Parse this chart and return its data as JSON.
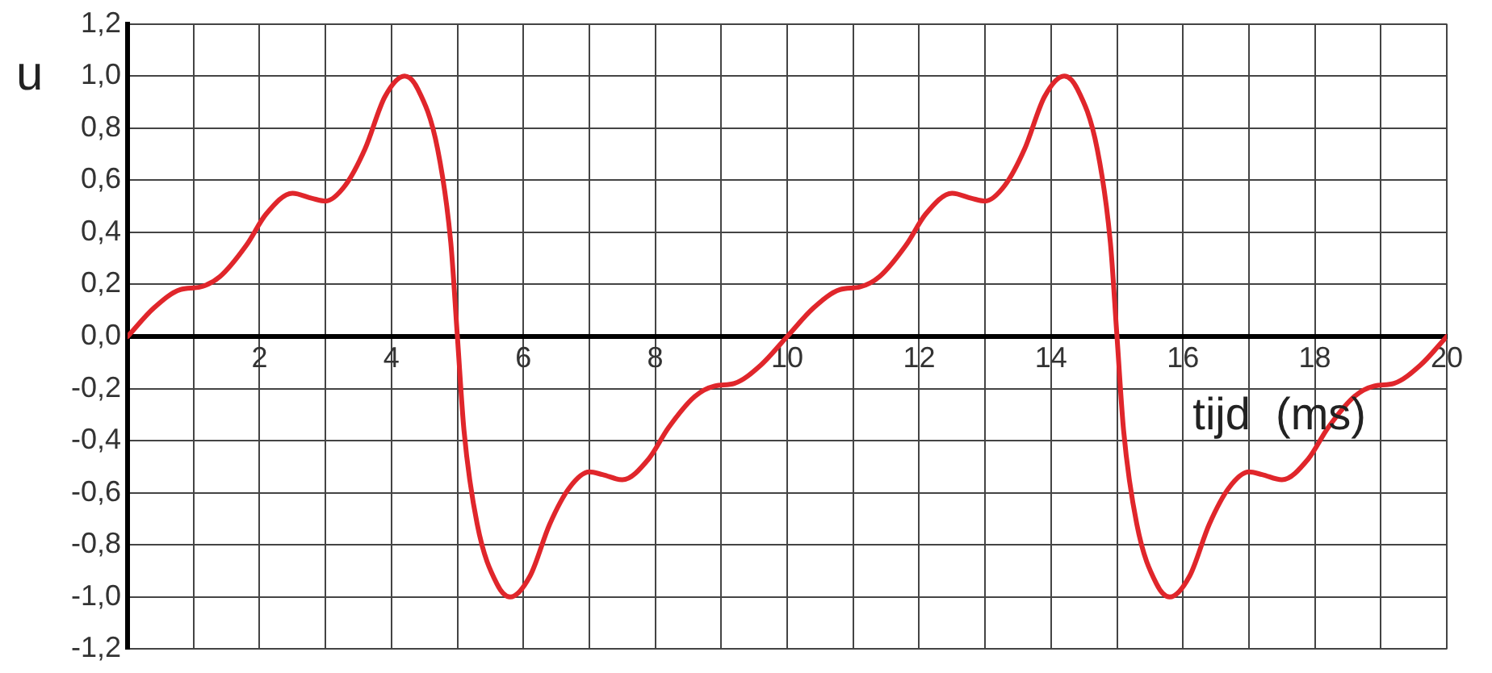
{
  "chart_data": {
    "type": "line",
    "xlabel": "tijd  (ms)",
    "ylabel": "u",
    "color": "#e0262b",
    "grid": true,
    "marker": "none",
    "line_style": "solid",
    "xlim": [
      0,
      20
    ],
    "ylim": [
      -1.2,
      1.2
    ],
    "xticks": [
      {
        "value": 0,
        "label": null
      },
      {
        "value": 1,
        "label": null
      },
      2,
      {
        "value": 3,
        "label": null
      },
      4,
      {
        "value": 5,
        "label": null
      },
      6,
      {
        "value": 7,
        "label": null
      },
      8,
      {
        "value": 9,
        "label": null
      },
      10,
      {
        "value": 11,
        "label": null
      },
      12,
      {
        "value": 13,
        "label": null
      },
      14,
      {
        "value": 15,
        "label": null
      },
      16,
      {
        "value": 17,
        "label": null
      },
      18,
      {
        "value": 19,
        "label": null
      },
      20
    ],
    "yticks": [
      {
        "value": -1.2,
        "label": "-1,2"
      },
      {
        "value": -1,
        "label": "-1,0"
      },
      {
        "value": -0.8,
        "label": "-0,8"
      },
      {
        "value": -0.6,
        "label": "-0,6"
      },
      {
        "value": -0.4,
        "label": "-0,4"
      },
      {
        "value": -0.2,
        "label": "-0,2"
      },
      {
        "value": 0,
        "label": "0,0"
      },
      {
        "value": 0.2,
        "label": "0,2"
      },
      {
        "value": 0.4,
        "label": "0,4"
      },
      {
        "value": 0.6,
        "label": "0,6"
      },
      {
        "value": 0.8,
        "label": "0,8"
      },
      {
        "value": 1,
        "label": "1,0"
      },
      {
        "value": 1.2,
        "label": "1,2"
      }
    ],
    "x": [
      0,
      0.4,
      0.8,
      1.1,
      1.4,
      1.8,
      2.1,
      2.5,
      2.8,
      3.0,
      3.3,
      3.6,
      3.9,
      4.2,
      4.4,
      4.7,
      4.9,
      5.0,
      5.1,
      5.3,
      5.6,
      5.8,
      6.1,
      6.4,
      6.7,
      7.0,
      7.2,
      7.5,
      7.9,
      8.2,
      8.6,
      8.9,
      9.2,
      9.6,
      10,
      10.4,
      10.8,
      11.1,
      11.4,
      11.8,
      12.1,
      12.5,
      12.8,
      13.0,
      13.3,
      13.6,
      13.9,
      14.2,
      14.4,
      14.7,
      14.9,
      15.0,
      15.1,
      15.3,
      15.6,
      15.8,
      16.1,
      16.4,
      16.7,
      17.0,
      17.2,
      17.5,
      17.9,
      18.2,
      18.6,
      18.9,
      19.2,
      19.6,
      20
    ],
    "values": [
      0,
      0.11,
      0.18,
      0.19,
      0.23,
      0.35,
      0.47,
      0.55,
      0.53,
      0.52,
      0.58,
      0.72,
      0.92,
      1.0,
      0.95,
      0.72,
      0.36,
      0,
      -0.36,
      -0.72,
      -0.95,
      -1.0,
      -0.92,
      -0.72,
      -0.58,
      -0.52,
      -0.53,
      -0.55,
      -0.47,
      -0.35,
      -0.23,
      -0.19,
      -0.18,
      -0.11,
      0,
      0.11,
      0.18,
      0.19,
      0.23,
      0.35,
      0.47,
      0.55,
      0.53,
      0.52,
      0.58,
      0.72,
      0.92,
      1.0,
      0.95,
      0.72,
      0.36,
      0,
      -0.36,
      -0.72,
      -0.95,
      -1.0,
      -0.92,
      -0.72,
      -0.58,
      -0.52,
      -0.53,
      -0.55,
      -0.47,
      -0.35,
      -0.23,
      -0.19,
      -0.18,
      -0.11,
      0
    ]
  }
}
